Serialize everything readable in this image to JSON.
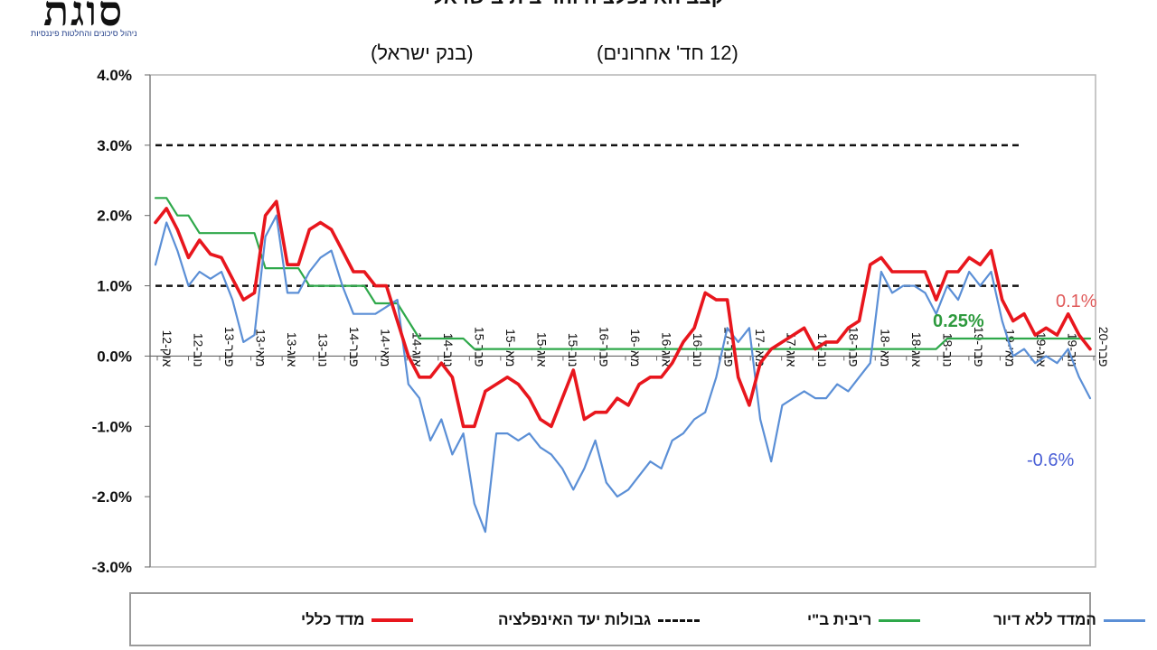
{
  "header": {
    "logo_text": "סוגת",
    "logo_tagline": "ניהול סיכונים והחלטות פיננסיות",
    "title": "קצב האינפלציה והריבית בישראל",
    "source_label": "(בנק ישראל)",
    "period_label": "(12 חד' אחרונים)"
  },
  "colors": {
    "cpi": "#e8161d",
    "ex_housing": "#5b8fd6",
    "rate": "#2ea84a",
    "target": "#111111",
    "annotation_cpi": "#e05a5a",
    "annotation_ex_housing": "#4a5fd6",
    "annotation_rate": "#2e9a3e"
  },
  "chart_data": {
    "type": "line",
    "y_ticks": [
      "4.0%",
      "3.0%",
      "2.0%",
      "1.0%",
      "0.0%",
      "-1.0%",
      "-2.0%",
      "-3.0%"
    ],
    "ylim": [
      -3.0,
      4.0
    ],
    "x_tick_labels": [
      "אוק-12",
      "נוב-12",
      "פבר-13",
      "מאי-13",
      "אוג-13",
      "נוב-13",
      "פבר-14",
      "מאי-14",
      "אוג-14",
      "נוב-14",
      "פבר-15",
      "מאי-15",
      "אוג-15",
      "נוב-15",
      "פבר-16",
      "מאי-16",
      "אוג-16",
      "נוב-16",
      "פבר-17",
      "מאי-17",
      "אוג-17",
      "נוב-17",
      "פבר-18",
      "מאי-18",
      "אוג-18",
      "נוב-18",
      "פבר-19",
      "מאי-19",
      "אוג-19",
      "נוב-19",
      "פבר-20"
    ],
    "series": [
      {
        "name": "מדד כללי",
        "key": "cpi",
        "values": [
          1.9,
          2.1,
          1.8,
          1.4,
          1.65,
          1.45,
          1.4,
          1.1,
          0.8,
          0.9,
          2.0,
          2.2,
          1.3,
          1.3,
          1.8,
          1.9,
          1.8,
          1.5,
          1.2,
          1.2,
          1.0,
          1.0,
          0.5,
          0.0,
          -0.3,
          -0.3,
          -0.1,
          -0.3,
          -1.0,
          -1.0,
          -0.5,
          -0.4,
          -0.3,
          -0.4,
          -0.6,
          -0.9,
          -1.0,
          -0.6,
          -0.2,
          -0.9,
          -0.8,
          -0.8,
          -0.6,
          -0.7,
          -0.4,
          -0.3,
          -0.3,
          -0.1,
          0.2,
          0.4,
          0.9,
          0.8,
          0.8,
          -0.3,
          -0.7,
          -0.1,
          0.1,
          0.2,
          0.3,
          0.4,
          0.1,
          0.2,
          0.2,
          0.4,
          0.5,
          1.3,
          1.4,
          1.2,
          1.2,
          1.2,
          1.2,
          0.8,
          1.2,
          1.2,
          1.4,
          1.3,
          1.5,
          0.8,
          0.5,
          0.6,
          0.3,
          0.4,
          0.3,
          0.6,
          0.3,
          0.1
        ]
      },
      {
        "name": "המדד ללא דיור",
        "key": "ex_housing",
        "values": [
          1.3,
          1.9,
          1.5,
          1.0,
          1.2,
          1.1,
          1.2,
          0.8,
          0.2,
          0.3,
          1.7,
          2.0,
          0.9,
          0.9,
          1.2,
          1.4,
          1.5,
          1.0,
          0.6,
          0.6,
          0.6,
          0.7,
          0.8,
          -0.4,
          -0.6,
          -1.2,
          -0.9,
          -1.4,
          -1.1,
          -2.1,
          -2.5,
          -1.1,
          -1.1,
          -1.2,
          -1.1,
          -1.3,
          -1.4,
          -1.6,
          -1.9,
          -1.6,
          -1.2,
          -1.8,
          -2.0,
          -1.9,
          -1.7,
          -1.5,
          -1.6,
          -1.2,
          -1.1,
          -0.9,
          -0.8,
          -0.3,
          0.4,
          0.2,
          0.4,
          -0.9,
          -1.5,
          -0.7,
          -0.6,
          -0.5,
          -0.6,
          -0.6,
          -0.4,
          -0.5,
          -0.3,
          -0.1,
          1.2,
          0.9,
          1.0,
          1.0,
          0.9,
          0.6,
          1.0,
          0.8,
          1.2,
          1.0,
          1.2,
          0.5,
          0.0,
          0.1,
          -0.1,
          0.0,
          -0.1,
          0.1,
          -0.3,
          -0.6
        ]
      },
      {
        "name": "ריבית ב\"י",
        "key": "rate",
        "values": [
          2.25,
          2.25,
          2.0,
          2.0,
          1.75,
          1.75,
          1.75,
          1.75,
          1.75,
          1.75,
          1.25,
          1.25,
          1.25,
          1.25,
          1.0,
          1.0,
          1.0,
          1.0,
          1.0,
          1.0,
          0.75,
          0.75,
          0.75,
          0.5,
          0.25,
          0.25,
          0.25,
          0.25,
          0.25,
          0.1,
          0.1,
          0.1,
          0.1,
          0.1,
          0.1,
          0.1,
          0.1,
          0.1,
          0.1,
          0.1,
          0.1,
          0.1,
          0.1,
          0.1,
          0.1,
          0.1,
          0.1,
          0.1,
          0.1,
          0.1,
          0.1,
          0.1,
          0.1,
          0.1,
          0.1,
          0.1,
          0.1,
          0.1,
          0.1,
          0.1,
          0.1,
          0.1,
          0.1,
          0.1,
          0.1,
          0.1,
          0.1,
          0.1,
          0.1,
          0.1,
          0.1,
          0.1,
          0.25,
          0.25,
          0.25,
          0.25,
          0.25,
          0.25,
          0.25,
          0.25,
          0.25,
          0.25,
          0.25,
          0.25,
          0.25,
          0.25
        ]
      },
      {
        "name": "גבולות יעד האינפלציה",
        "key": "target",
        "upper": 3.0,
        "lower": 1.0,
        "style": "dashed"
      }
    ],
    "annotations": [
      {
        "key": "cpi",
        "text": "0.1%"
      },
      {
        "key": "rate",
        "text": "0.25%"
      },
      {
        "key": "ex_housing",
        "text": "-0.6%"
      }
    ],
    "legend_position": "bottom",
    "grid": false
  },
  "legend": [
    {
      "key": "ex_housing",
      "label": "המדד ללא דיור"
    },
    {
      "key": "rate",
      "label": "ריבית ב\"י"
    },
    {
      "key": "target",
      "label": "גבולות יעד האינפלציה"
    },
    {
      "key": "cpi",
      "label": "מדד כללי"
    }
  ]
}
